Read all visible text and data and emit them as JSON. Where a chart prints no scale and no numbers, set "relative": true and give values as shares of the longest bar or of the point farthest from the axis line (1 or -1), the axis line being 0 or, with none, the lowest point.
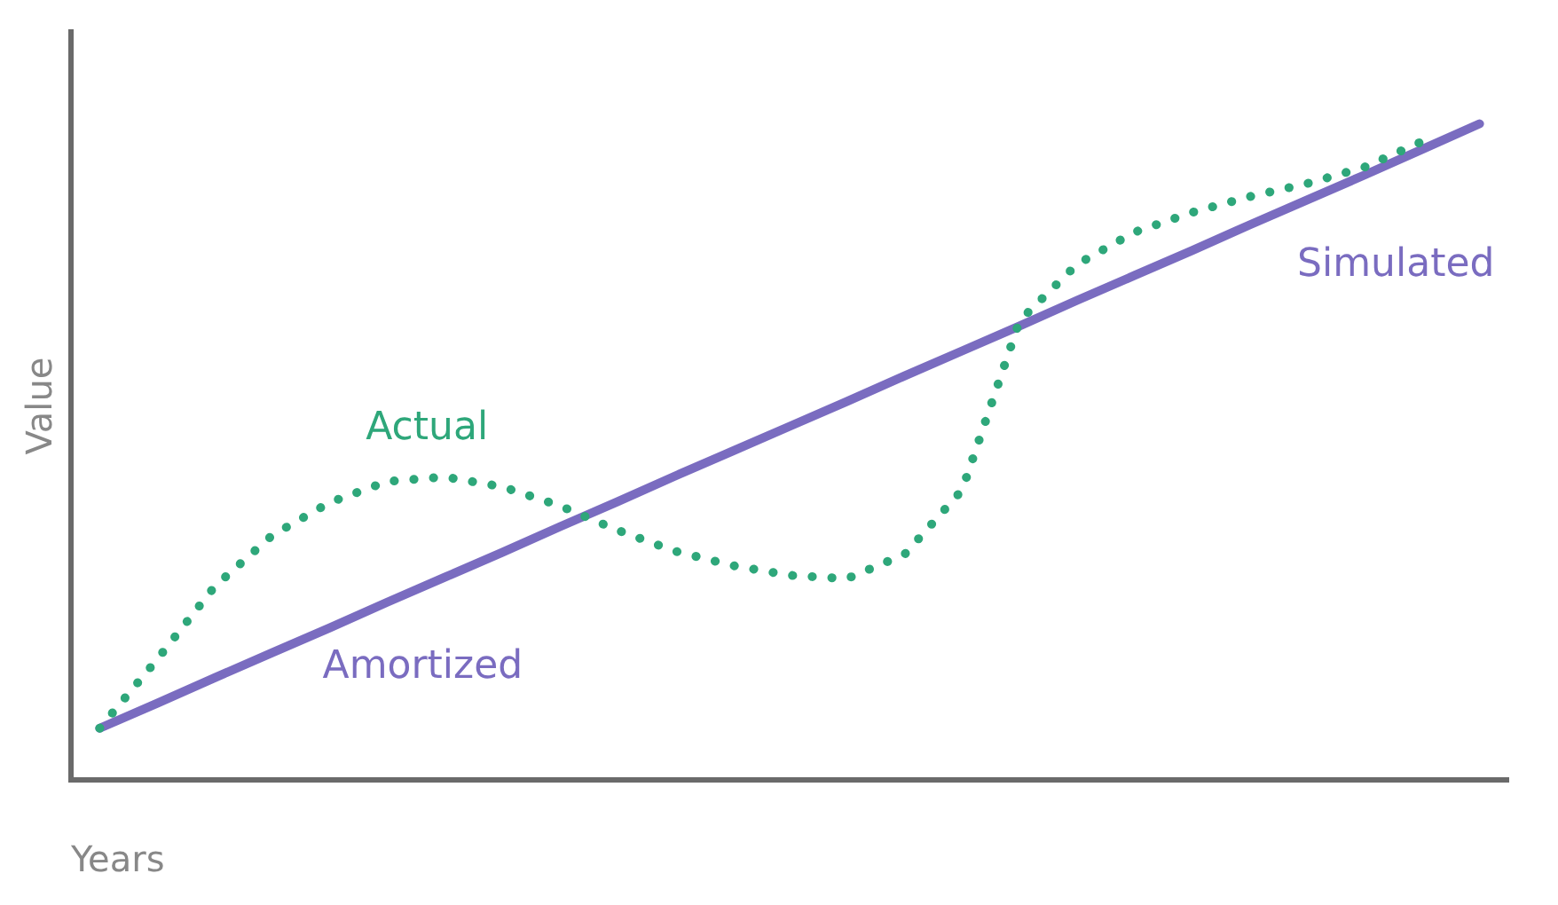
{
  "chart_data": {
    "type": "line",
    "relative": true,
    "xlabel": "Years",
    "ylabel": "Value",
    "grid": false,
    "legend": false,
    "marker": "none",
    "categories": [
      null,
      null,
      null,
      null,
      null,
      null,
      null,
      null,
      null,
      null,
      null,
      null,
      null,
      null,
      null,
      null,
      null,
      null,
      null,
      null,
      null,
      null,
      null,
      null,
      null
    ],
    "series": [
      {
        "name": "Actual",
        "color": "#2ea77a",
        "line_style": "dotted",
        "values": [
          0.079,
          0.184,
          0.295,
          0.373,
          0.423,
          0.455,
          0.462,
          0.447,
          0.418,
          0.381,
          0.349,
          0.327,
          0.312,
          0.307,
          0.344,
          0.442,
          0.7,
          0.786,
          0.835,
          0.865,
          0.889,
          0.909,
          0.934,
          0.973,
          null
        ]
      },
      {
        "color": "#7a6cc0",
        "line_style": "solid",
        "values": [
          0.079,
          0.117,
          0.156,
          0.194,
          0.232,
          0.271,
          0.309,
          0.347,
          0.386,
          0.424,
          0.463,
          0.501,
          0.539,
          0.577,
          0.616,
          0.654,
          0.692,
          0.731,
          0.769,
          0.807,
          0.846,
          0.884,
          0.922,
          0.961,
          1
        ]
      }
    ],
    "annotations": [
      "Amortized",
      "Simulated"
    ]
  }
}
